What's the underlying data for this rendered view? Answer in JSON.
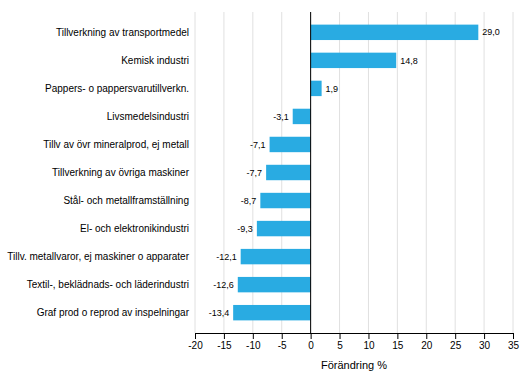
{
  "chart_data": {
    "type": "bar",
    "orientation": "horizontal",
    "xlabel": "Förändring %",
    "categories": [
      "Graf prod o reprod av inspelningar",
      "Textil-, beklädnads- och läderindustri",
      "Tillv. metallvaror, ej maskiner o apparater",
      "El- och elektronikindustri",
      "Stål- och metallframställning",
      "Tillverkning av övriga maskiner",
      "Tillv av övr mineralprod, ej metall",
      "Livsmedelsindustri",
      "Pappers- o pappersvarutillverkn.",
      "Kemisk industri",
      "Tillverkning av transportmedel"
    ],
    "values": [
      -13.4,
      -12.6,
      -12.1,
      -9.3,
      -8.7,
      -7.7,
      -7.1,
      -3.1,
      1.9,
      14.8,
      29.0
    ],
    "value_labels": [
      "-13,4",
      "-12,6",
      "-12,1",
      "-9,3",
      "-8,7",
      "-7,7",
      "-7,1",
      "-3,1",
      "1,9",
      "14,8",
      "29,0"
    ],
    "data_labels": true,
    "color": "#29abe2",
    "xlim": [
      -20,
      35
    ],
    "xticks": [
      -20,
      -15,
      -10,
      -5,
      0,
      5,
      10,
      15,
      20,
      25,
      30,
      35
    ],
    "grid": true
  }
}
